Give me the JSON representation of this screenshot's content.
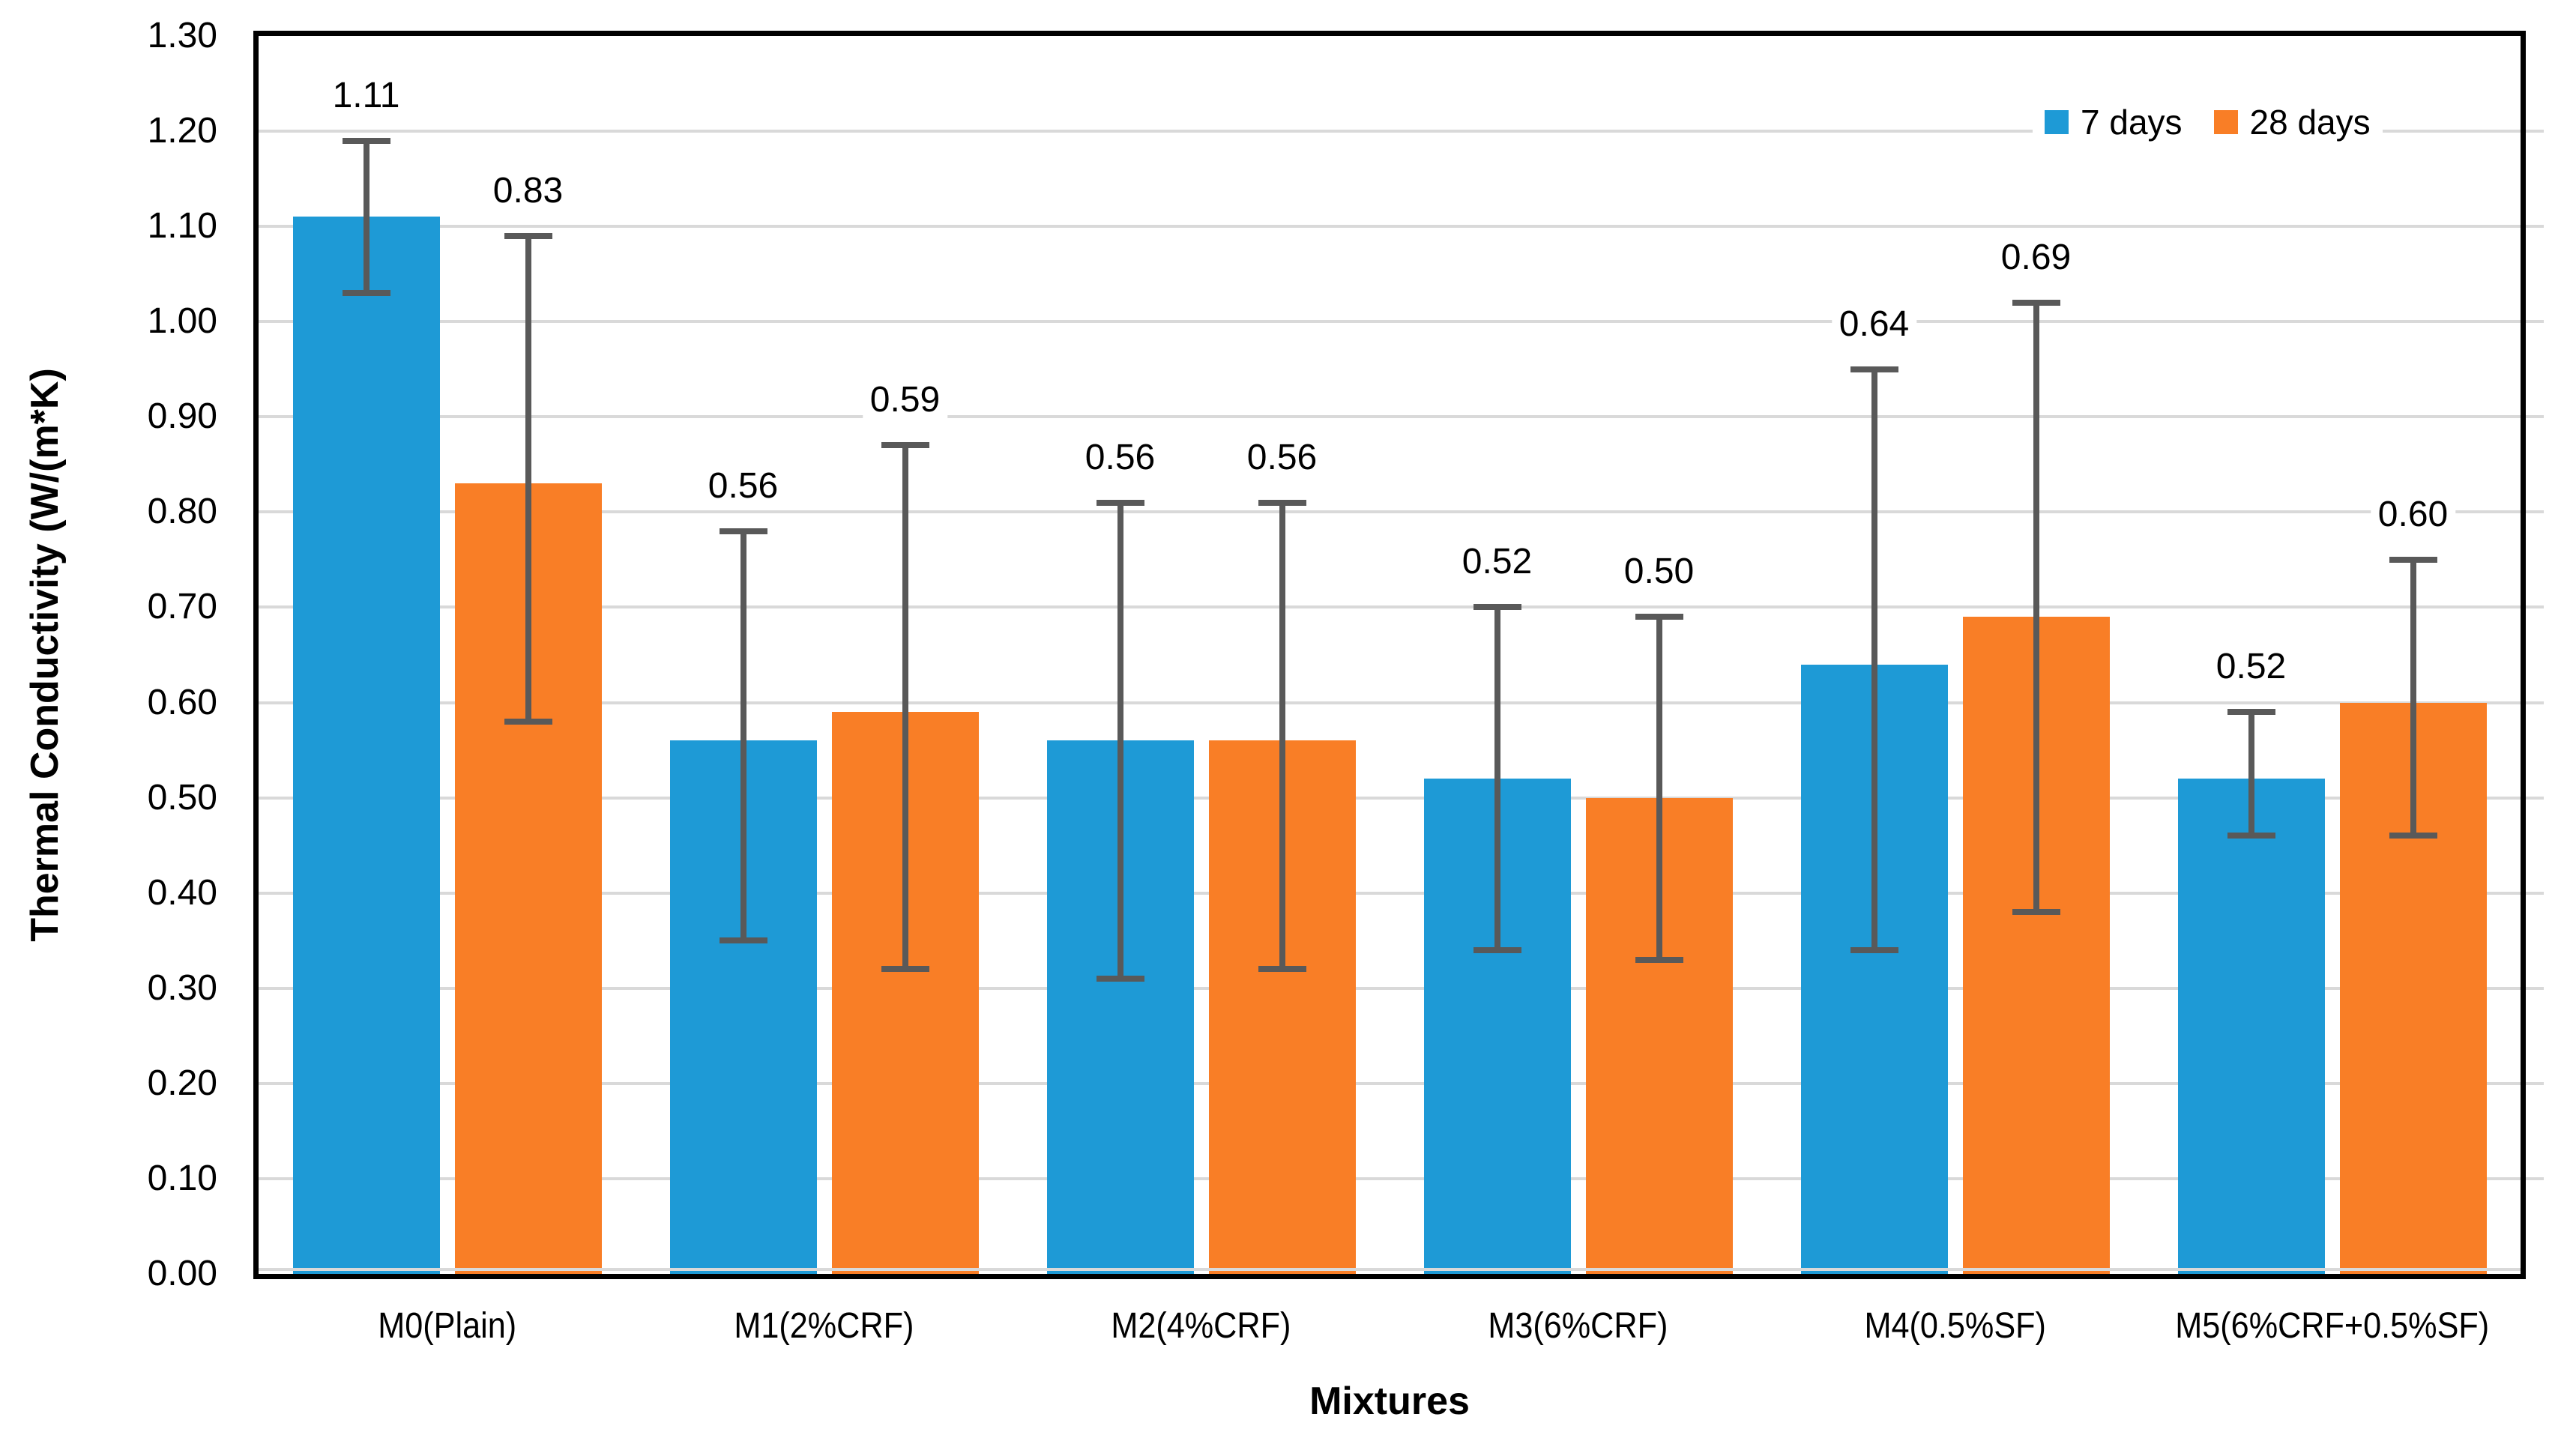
{
  "chart_data": {
    "type": "bar",
    "title": "",
    "xlabel": "Mixtures",
    "ylabel": "Thermal Conductivity (W/(m*K)",
    "ylim": [
      0.0,
      1.3
    ],
    "ytick_step": 0.1,
    "ytick_labels": [
      "0.00",
      "0.10",
      "0.20",
      "0.30",
      "0.40",
      "0.50",
      "0.60",
      "0.70",
      "0.80",
      "0.90",
      "1.00",
      "1.10",
      "1.20",
      "1.30"
    ],
    "categories": [
      "M0(Plain)",
      "M1(2%CRF)",
      "M2(4%CRF)",
      "M3(6%CRF)",
      "M4(0.5%SF)",
      "M5(6%CRF+0.5%SF)"
    ],
    "series": [
      {
        "name": "7 days",
        "color": "#1E9AD6",
        "values": [
          1.11,
          0.56,
          0.56,
          0.52,
          0.64,
          0.52
        ],
        "labels": [
          "1.11",
          "0.56",
          "0.56",
          "0.52",
          "0.64",
          "0.52"
        ],
        "error_top": [
          1.19,
          0.78,
          0.81,
          0.7,
          0.95,
          0.59
        ],
        "error_bottom": [
          1.03,
          0.35,
          0.31,
          0.34,
          0.34,
          0.46
        ]
      },
      {
        "name": "28 days",
        "color": "#F97E26",
        "values": [
          0.83,
          0.59,
          0.56,
          0.5,
          0.69,
          0.6
        ],
        "labels": [
          "0.83",
          "0.59",
          "0.56",
          "0.50",
          "0.69",
          "0.60"
        ],
        "error_top": [
          1.09,
          0.87,
          0.81,
          0.69,
          1.02,
          0.75
        ],
        "error_bottom": [
          0.58,
          0.32,
          0.32,
          0.33,
          0.38,
          0.46
        ]
      }
    ],
    "legend_position": "top-right",
    "grid": true,
    "gridline_color": "#D9D9D9",
    "error_bar_color": "#595959",
    "axis_border_color": "#000000",
    "background_color": "#FFFFFF"
  }
}
